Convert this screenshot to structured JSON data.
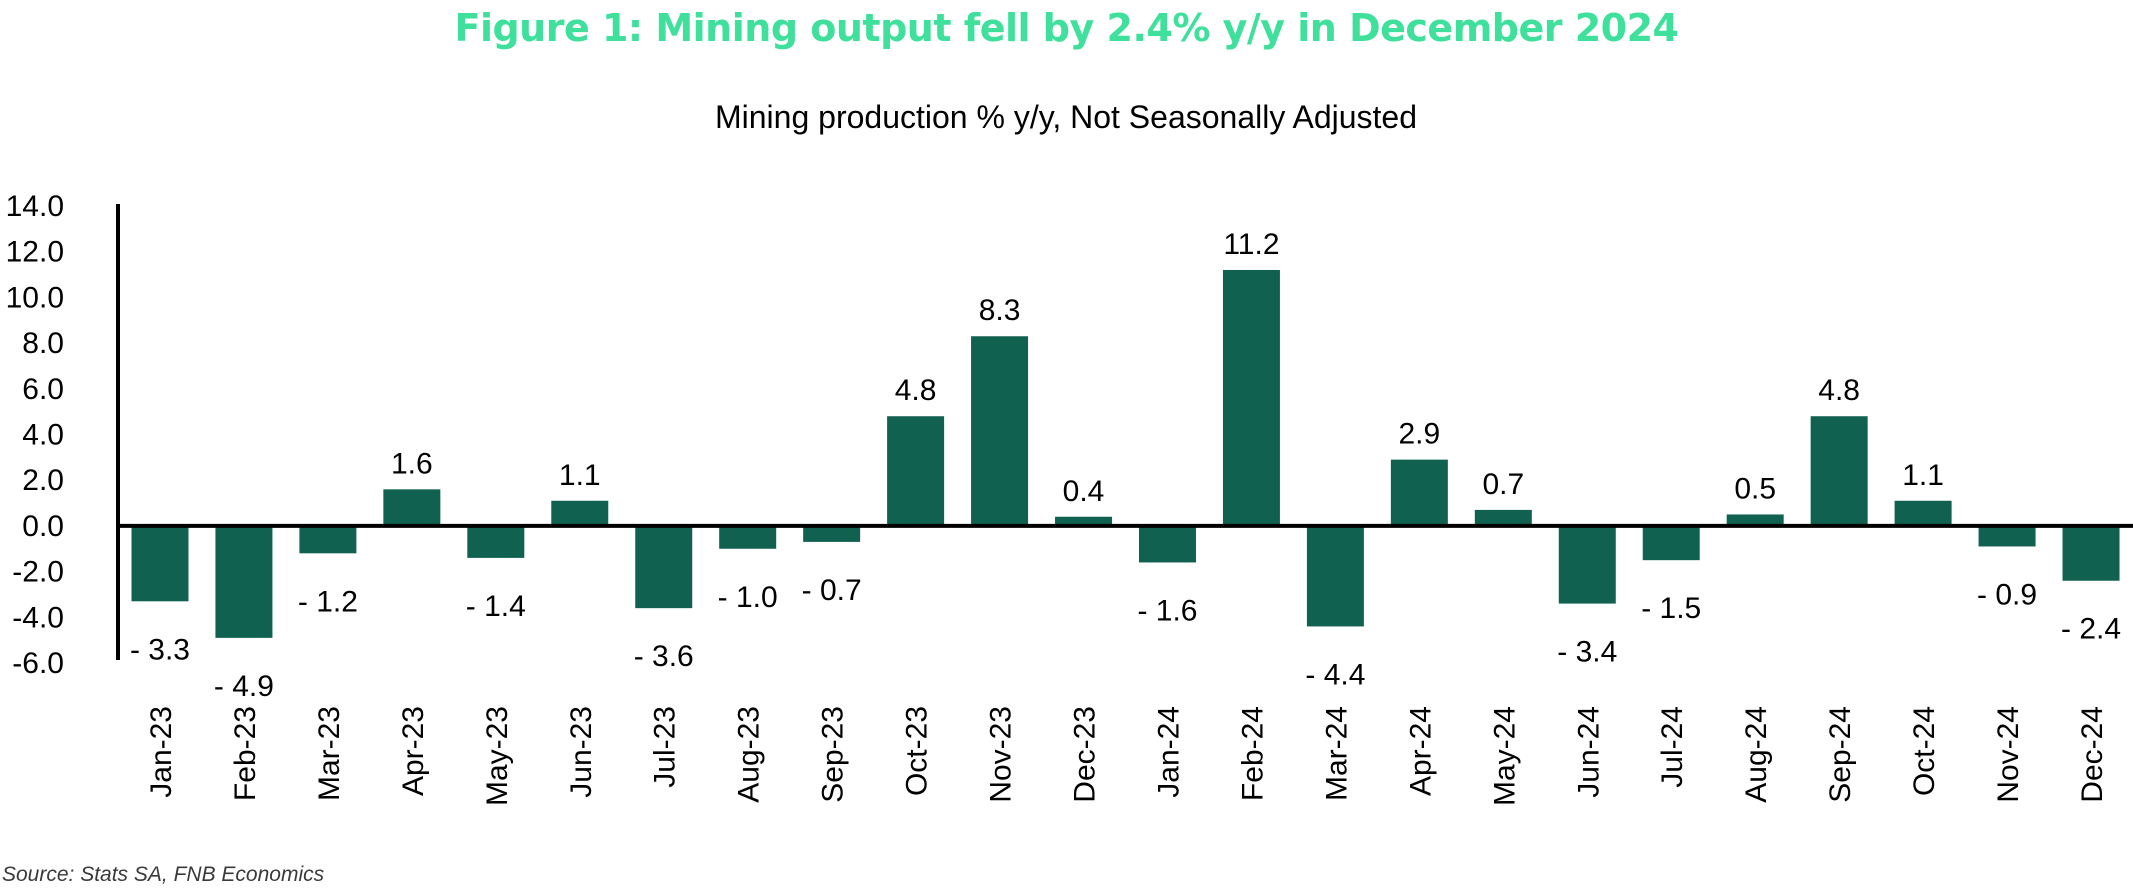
{
  "figure_title": "Figure 1: Mining output fell by 2.4% y/y in December 2024",
  "source_note": "Source: Stats SA, FNB Economics",
  "colors": {
    "title": "#3ee09b",
    "bar": "#116150",
    "axis": "#000000",
    "text": "#000000"
  },
  "chart_data": {
    "type": "bar",
    "title": "Mining production % y/y, Not Seasonally Adjusted",
    "xlabel": "",
    "ylabel": "",
    "ylim": [
      -6,
      14
    ],
    "yticks": [
      14,
      12,
      10,
      8,
      6,
      4,
      2,
      0,
      -2,
      -4,
      -6
    ],
    "ytick_labels": [
      "14.0",
      "12.0",
      "10.0",
      "8.0",
      "6.0",
      "4.0",
      "2.0",
      "0.0",
      "-2.0",
      "-4.0",
      "-6.0"
    ],
    "grid": false,
    "legend": "none",
    "categories": [
      "Jan-23",
      "Feb-23",
      "Mar-23",
      "Apr-23",
      "May-23",
      "Jun-23",
      "Jul-23",
      "Aug-23",
      "Sep-23",
      "Oct-23",
      "Nov-23",
      "Dec-23",
      "Jan-24",
      "Feb-24",
      "Mar-24",
      "Apr-24",
      "May-24",
      "Jun-24",
      "Jul-24",
      "Aug-24",
      "Sep-24",
      "Oct-24",
      "Nov-24",
      "Dec-24"
    ],
    "values": [
      -3.3,
      -4.9,
      -1.2,
      1.6,
      -1.4,
      1.1,
      -3.6,
      -1.0,
      -0.7,
      4.8,
      8.3,
      0.4,
      -1.6,
      11.2,
      -4.4,
      2.9,
      0.7,
      -3.4,
      -1.5,
      0.5,
      4.8,
      1.1,
      -0.9,
      -2.4
    ],
    "data_labels": [
      "- 3.3",
      "- 4.9",
      "- 1.2",
      "1.6",
      "- 1.4",
      "1.1",
      "- 3.6",
      "- 1.0",
      "- 0.7",
      "4.8",
      "8.3",
      "0.4",
      "- 1.6",
      "11.2",
      "- 4.4",
      "2.9",
      "0.7",
      "- 3.4",
      "- 1.5",
      "0.5",
      "4.8",
      "1.1",
      "- 0.9",
      "- 2.4"
    ]
  }
}
